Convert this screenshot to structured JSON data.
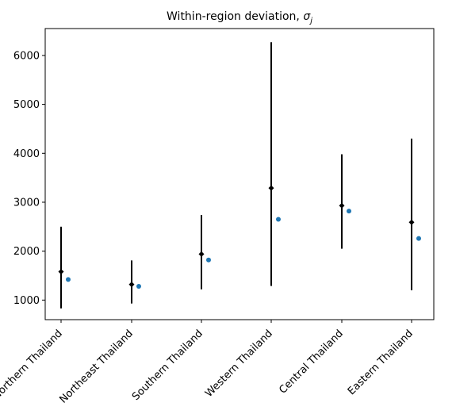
{
  "chart_data": {
    "type": "scatter",
    "title_prefix": "Within-region deviation, ",
    "title_symbol": "σ",
    "title_subscript": "j",
    "xlabel": "",
    "ylabel": "",
    "categories": [
      "Northern Thailand",
      "Northeast Thailand",
      "Southern Thailand",
      "Western Thailand",
      "Central Thailand",
      "Eastern Thailand"
    ],
    "ylim": [
      600,
      6550
    ],
    "yticks": [
      1000,
      2000,
      3000,
      4000,
      5000,
      6000
    ],
    "grid": false,
    "series": [
      {
        "kind": "interval-with-point",
        "color": "#000000",
        "points": [
          1580,
          1320,
          1940,
          3290,
          2930,
          2590
        ],
        "lower": [
          830,
          930,
          1220,
          1290,
          2050,
          1200
        ],
        "upper": [
          2500,
          1810,
          2740,
          6270,
          3980,
          4300
        ]
      },
      {
        "kind": "point",
        "color": "#1f77b4",
        "points": [
          1420,
          1280,
          1820,
          2650,
          2820,
          2260
        ]
      }
    ]
  }
}
